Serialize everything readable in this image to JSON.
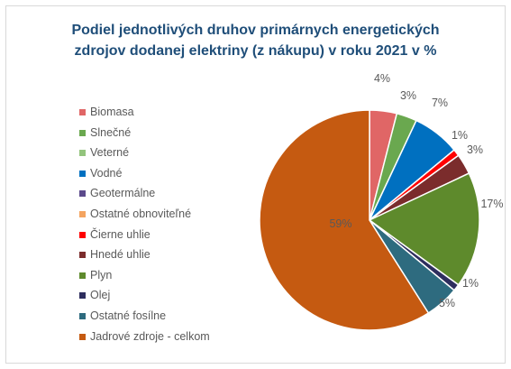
{
  "chart_data": {
    "type": "pie",
    "title_line1": "Podiel jednotlivých druhov primárnych energetických",
    "title_line2": "zdrojov dodanej elektriny (z nákupu) v roku 2021 v %",
    "categories": [
      "Biomasa",
      "Slnečné",
      "Veterné",
      "Vodné",
      "Geotermálne",
      "Ostatné obnoviteľné",
      "Čierne uhlie",
      "Hnedé uhlie",
      "Plyn",
      "Olej",
      "Ostatné fosílne",
      "Jadrové zdroje - celkom"
    ],
    "values": [
      4,
      3,
      0,
      7,
      0,
      0,
      1,
      3,
      17,
      1,
      5,
      59
    ],
    "value_labels": [
      "4%",
      "3%",
      "",
      "7%",
      "",
      "",
      "1%",
      "3%",
      "17%",
      "1%",
      "5%",
      "59%"
    ],
    "colors": [
      "#e06666",
      "#6aa84f",
      "#93c47d",
      "#0070c0",
      "#5b4a8b",
      "#f4a460",
      "#ff0000",
      "#7b2c2c",
      "#5e8a2c",
      "#2e2e5e",
      "#2e6b7f",
      "#c55a11"
    ],
    "legend_position": "left"
  }
}
